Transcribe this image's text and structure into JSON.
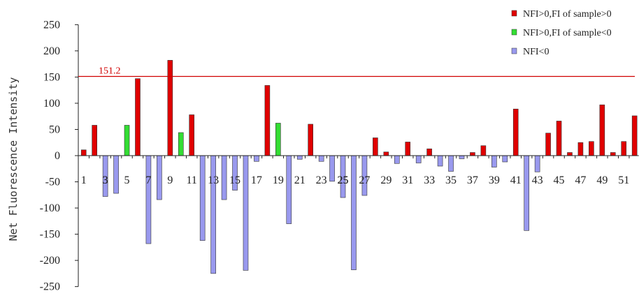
{
  "chart_data": {
    "type": "bar",
    "ylabel": "Net Fluorescence Intensity",
    "xlabel": "",
    "ylim": [
      -250,
      250
    ],
    "ytick_values": [
      250,
      200,
      150,
      100,
      50,
      0,
      -50,
      -100,
      -150,
      -200,
      -250
    ],
    "ytick_labels": [
      "250",
      "200",
      "150",
      "100",
      "50",
      "0",
      "-50",
      "-100",
      "-150",
      "-200",
      "-250"
    ],
    "categories": [
      "1",
      "2",
      "3",
      "4",
      "5",
      "6",
      "7",
      "8",
      "9",
      "10",
      "11",
      "12",
      "13",
      "14",
      "15",
      "16",
      "17",
      "18",
      "19",
      "20",
      "21",
      "22",
      "23",
      "24",
      "25",
      "26",
      "27",
      "28",
      "29",
      "30",
      "31",
      "32",
      "33",
      "34",
      "35",
      "36",
      "37",
      "38",
      "39",
      "40",
      "41",
      "42",
      "43",
      "44",
      "45",
      "46",
      "47",
      "48",
      "49",
      "50",
      "51",
      "52"
    ],
    "xtick_labels": [
      "1",
      "3",
      "5",
      "7",
      "9",
      "11",
      "13",
      "15",
      "17",
      "19",
      "21",
      "23",
      "25",
      "27",
      "29",
      "31",
      "33",
      "35",
      "37",
      "39",
      "41",
      "43",
      "45",
      "47",
      "49",
      "51"
    ],
    "xtick_overlay_labels": [
      "3",
      "25"
    ],
    "values": [
      11,
      58,
      -78,
      -72,
      58,
      147,
      -168,
      -84,
      182,
      44,
      78,
      -162,
      -225,
      -84,
      -66,
      -219,
      -11,
      134,
      62,
      -130,
      -7,
      60,
      -11,
      -49,
      -80,
      -218,
      -76,
      34,
      7,
      -15,
      26,
      -14,
      13,
      -20,
      -30,
      -6,
      6,
      19,
      -22,
      -12,
      89,
      -143,
      -31,
      43,
      66,
      6,
      25,
      27,
      97,
      6,
      27,
      76
    ],
    "groups": [
      "pos",
      "pos",
      "neg",
      "neg",
      "green",
      "pos",
      "neg",
      "neg",
      "pos",
      "green",
      "pos",
      "neg",
      "neg",
      "neg",
      "neg",
      "neg",
      "neg",
      "pos",
      "green",
      "neg",
      "neg",
      "pos",
      "neg",
      "neg",
      "neg",
      "neg",
      "neg",
      "pos",
      "pos",
      "neg",
      "pos",
      "neg",
      "pos",
      "neg",
      "neg",
      "neg",
      "pos",
      "pos",
      "neg",
      "neg",
      "pos",
      "neg",
      "neg",
      "pos",
      "pos",
      "pos",
      "pos",
      "pos",
      "pos",
      "pos",
      "pos",
      "pos"
    ],
    "series": [
      {
        "key": "pos",
        "name": "NFI>0,FI of sample>0",
        "color": "#e00000"
      },
      {
        "key": "green",
        "name": "NFI>0,FI of sample<0",
        "color": "#33dd33"
      },
      {
        "key": "neg",
        "name": "NFI<0",
        "color": "#9999ee"
      }
    ],
    "reference_line": {
      "value": 151.2,
      "label": "151.2",
      "color": "#d00000"
    },
    "legend_position": "top-right",
    "grid": false
  }
}
